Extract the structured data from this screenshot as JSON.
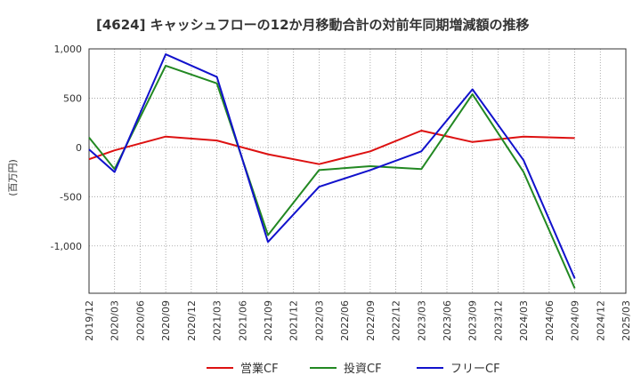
{
  "chart_data": {
    "type": "line",
    "title": "[4624]  キャッシュフローの12か月移動合計の対前年同期増減額の推移",
    "ylabel": "(百万円)",
    "xlabel": "",
    "ylim": [
      -1480,
      1000
    ],
    "yticks": [
      1000,
      500,
      0,
      -500,
      -1000
    ],
    "ytick_labels": [
      "1,000",
      "500",
      "0",
      "-500",
      "-1,000"
    ],
    "categories": [
      "2019/12",
      "2020/03",
      "2020/06",
      "2020/09",
      "2020/12",
      "2021/03",
      "2021/06",
      "2021/09",
      "2021/12",
      "2022/03",
      "2022/06",
      "2022/09",
      "2022/12",
      "2023/03",
      "2023/06",
      "2023/09",
      "2023/12",
      "2024/03",
      "2024/06",
      "2024/09",
      "2024/12",
      "2025/03"
    ],
    "grid": true,
    "legend_position": "bottom",
    "series": [
      {
        "name": "営業CF",
        "color": "#dd1111",
        "values": [
          -120,
          -30,
          null,
          110,
          null,
          70,
          null,
          -70,
          null,
          -170,
          null,
          -40,
          null,
          170,
          null,
          55,
          null,
          110,
          null,
          95,
          null,
          null
        ]
      },
      {
        "name": "投資CF",
        "color": "#228822",
        "values": [
          100,
          -220,
          null,
          830,
          null,
          650,
          null,
          -890,
          null,
          -230,
          null,
          -190,
          null,
          -220,
          null,
          540,
          null,
          -250,
          null,
          -1430,
          null,
          null
        ]
      },
      {
        "name": "フリーCF",
        "color": "#1111cc",
        "values": [
          -20,
          -250,
          null,
          945,
          null,
          715,
          null,
          -960,
          null,
          -400,
          null,
          -230,
          null,
          -40,
          null,
          590,
          null,
          -130,
          null,
          -1330,
          null,
          null
        ]
      }
    ]
  }
}
